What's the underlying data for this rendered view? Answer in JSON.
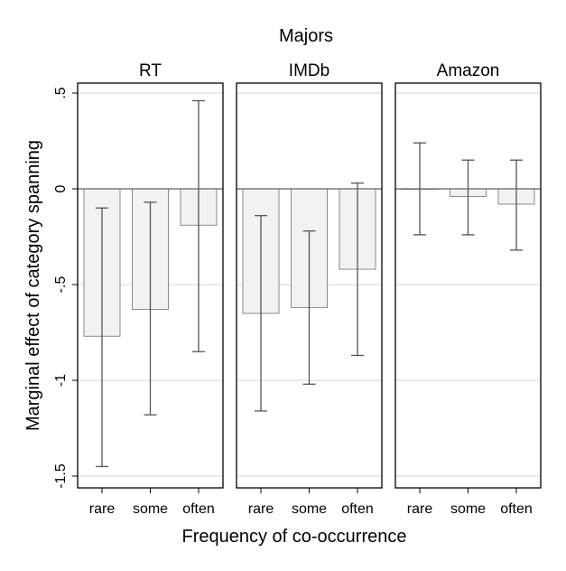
{
  "chart_data": {
    "type": "bar",
    "title": "Majors",
    "xlabel": "Frequency of co-occurrence",
    "ylabel": "Marginal effect of category spanning",
    "ylim": [
      -1.55,
      0.5
    ],
    "yticks": [
      0.5,
      0,
      -0.5,
      -1,
      -1.5
    ],
    "ytick_labels": [
      ".5",
      "0",
      "-.5",
      "-1",
      "-1.5"
    ],
    "categories": [
      "rare",
      "some",
      "often"
    ],
    "grid": true,
    "panels": [
      {
        "name": "RT",
        "values": [
          -0.77,
          -0.63,
          -0.19
        ],
        "ci_low": [
          -1.45,
          -1.18,
          -0.85
        ],
        "ci_high": [
          -0.1,
          -0.07,
          0.46
        ]
      },
      {
        "name": "IMDb",
        "values": [
          -0.65,
          -0.62,
          -0.42
        ],
        "ci_low": [
          -1.16,
          -1.02,
          -0.87
        ],
        "ci_high": [
          -0.14,
          -0.22,
          0.03
        ]
      },
      {
        "name": "Amazon",
        "values": [
          0.0,
          -0.04,
          -0.08
        ],
        "ci_low": [
          -0.24,
          -0.24,
          -0.32
        ],
        "ci_high": [
          0.24,
          0.15,
          0.15
        ]
      }
    ]
  }
}
